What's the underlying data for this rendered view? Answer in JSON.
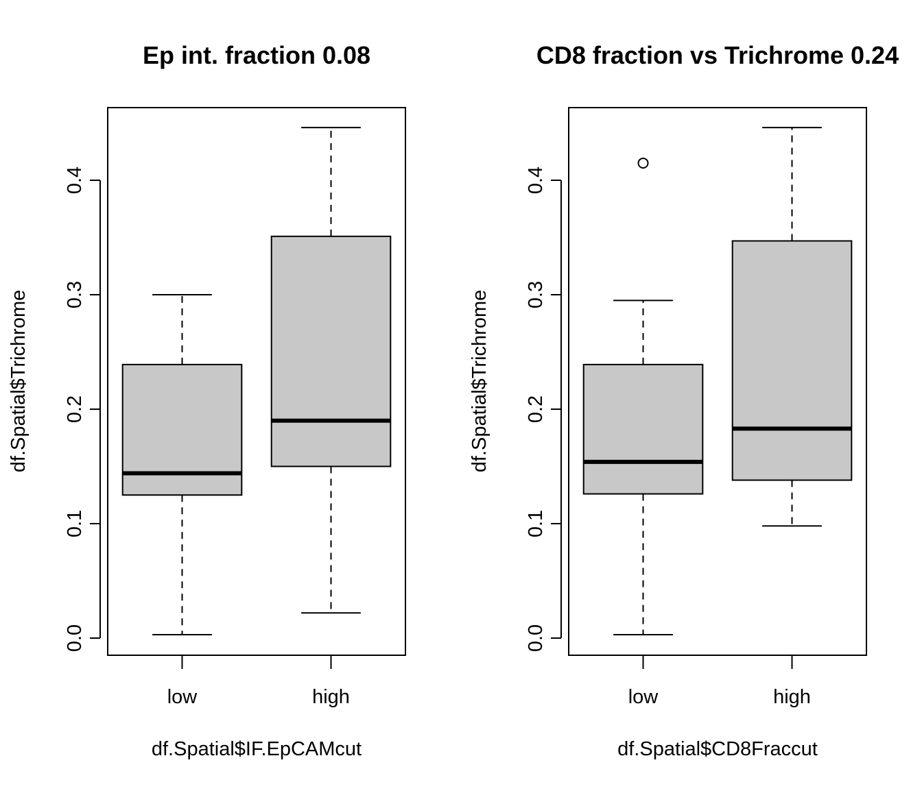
{
  "chart_data": [
    {
      "type": "boxplot",
      "title": "Ep int. fraction 0.08",
      "xlabel": "df.Spatial$IF.EpCAMcut",
      "ylabel": "df.Spatial$Trichrome",
      "ylim": [
        -0.015,
        0.463
      ],
      "yticks": [
        "0.0",
        "0.1",
        "0.2",
        "0.3",
        "0.4"
      ],
      "categories": [
        "low",
        "high"
      ],
      "boxes": [
        {
          "category": "low",
          "whisker_low": 0.003,
          "q1": 0.125,
          "median": 0.144,
          "q3": 0.239,
          "whisker_high": 0.3,
          "outliers": []
        },
        {
          "category": "high",
          "whisker_low": 0.022,
          "q1": 0.15,
          "median": 0.19,
          "q3": 0.351,
          "whisker_high": 0.446,
          "outliers": []
        }
      ],
      "colors": {
        "box_fill": "#c8c8c8",
        "stroke": "#000000"
      }
    },
    {
      "type": "boxplot",
      "title": "CD8 fraction vs Trichrome 0.24",
      "xlabel": "df.Spatial$CD8Fraccut",
      "ylabel": "df.Spatial$Trichrome",
      "ylim": [
        -0.015,
        0.463
      ],
      "yticks": [
        "0.0",
        "0.1",
        "0.2",
        "0.3",
        "0.4"
      ],
      "categories": [
        "low",
        "high"
      ],
      "boxes": [
        {
          "category": "low",
          "whisker_low": 0.003,
          "q1": 0.126,
          "median": 0.154,
          "q3": 0.239,
          "whisker_high": 0.295,
          "outliers": [
            0.415
          ]
        },
        {
          "category": "high",
          "whisker_low": 0.098,
          "q1": 0.138,
          "median": 0.183,
          "q3": 0.347,
          "whisker_high": 0.446,
          "outliers": []
        }
      ],
      "colors": {
        "box_fill": "#c8c8c8",
        "stroke": "#000000"
      }
    }
  ]
}
